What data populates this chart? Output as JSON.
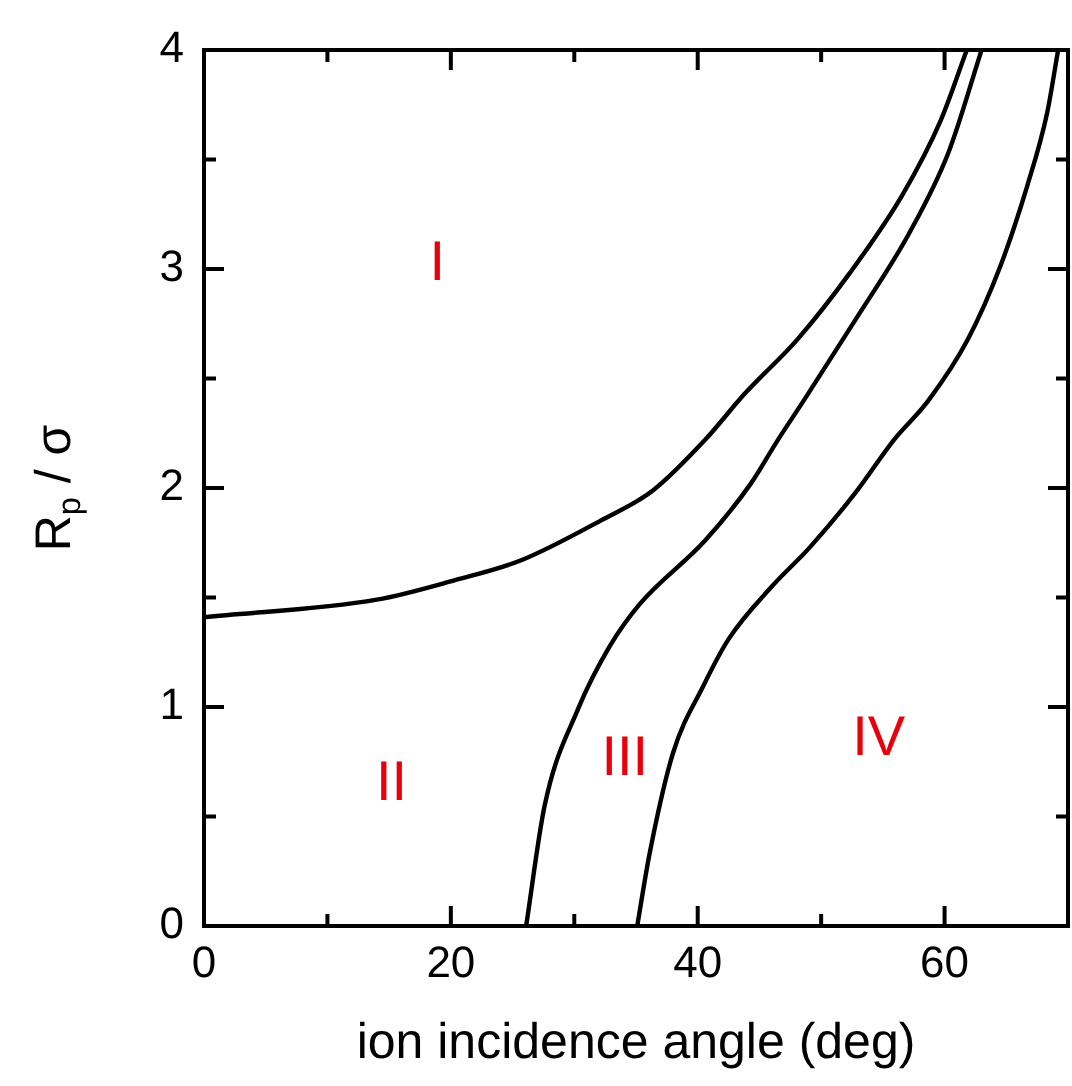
{
  "chart_data": {
    "type": "line",
    "xlabel": "ion incidence angle (deg)",
    "ylabel": "R$_{p}$ / σ",
    "xlim": [
      0,
      70
    ],
    "ylim": [
      0,
      4
    ],
    "xticks": [
      0,
      {
        "value": 10,
        "label": null
      },
      20,
      {
        "value": 30,
        "label": null
      },
      40,
      {
        "value": 50,
        "label": null
      },
      60
    ],
    "yticks": [
      0,
      {
        "value": 0.5,
        "label": null
      },
      1,
      {
        "value": 1.5,
        "label": null
      },
      2,
      {
        "value": 2.5,
        "label": null
      },
      3,
      {
        "value": 3.5,
        "label": null
      },
      4
    ],
    "grid": false,
    "legend": false,
    "marker": "none",
    "line_style": "solid",
    "series": [
      {
        "color": "#000000",
        "x": [
          0,
          14.0,
          20.4,
          25.7,
          32.1,
          36.4,
          40.6,
          43.8,
          48.1,
          52.3,
          56.6,
          59.7,
          61.8
        ],
        "values": [
          1.41,
          1.49,
          1.58,
          1.67,
          1.85,
          1.99,
          2.22,
          2.43,
          2.68,
          2.98,
          3.34,
          3.68,
          4.0
        ]
      },
      {
        "color": "#000000",
        "x": [
          26.1,
          27.6,
          30.3,
          32.9,
          35.3,
          40.6,
          44.3,
          46.5,
          48.6,
          52.8,
          57.1,
          60.3,
          63.0
        ],
        "values": [
          0,
          0.55,
          0.99,
          1.28,
          1.47,
          1.76,
          2.02,
          2.22,
          2.4,
          2.77,
          3.16,
          3.53,
          4.0
        ]
      },
      {
        "color": "#000000",
        "x": [
          35.1,
          36.1,
          38.0,
          40.4,
          42.5,
          46.0,
          49.1,
          52.8,
          55.9,
          58.7,
          61.9,
          64.5,
          66.7,
          68.3,
          69.2
        ],
        "values": [
          0,
          0.33,
          0.79,
          1.09,
          1.31,
          1.55,
          1.73,
          1.98,
          2.22,
          2.4,
          2.68,
          3.01,
          3.38,
          3.71,
          4.0
        ]
      }
    ],
    "annotations": [
      "I",
      "II",
      "III",
      "IV"
    ]
  }
}
